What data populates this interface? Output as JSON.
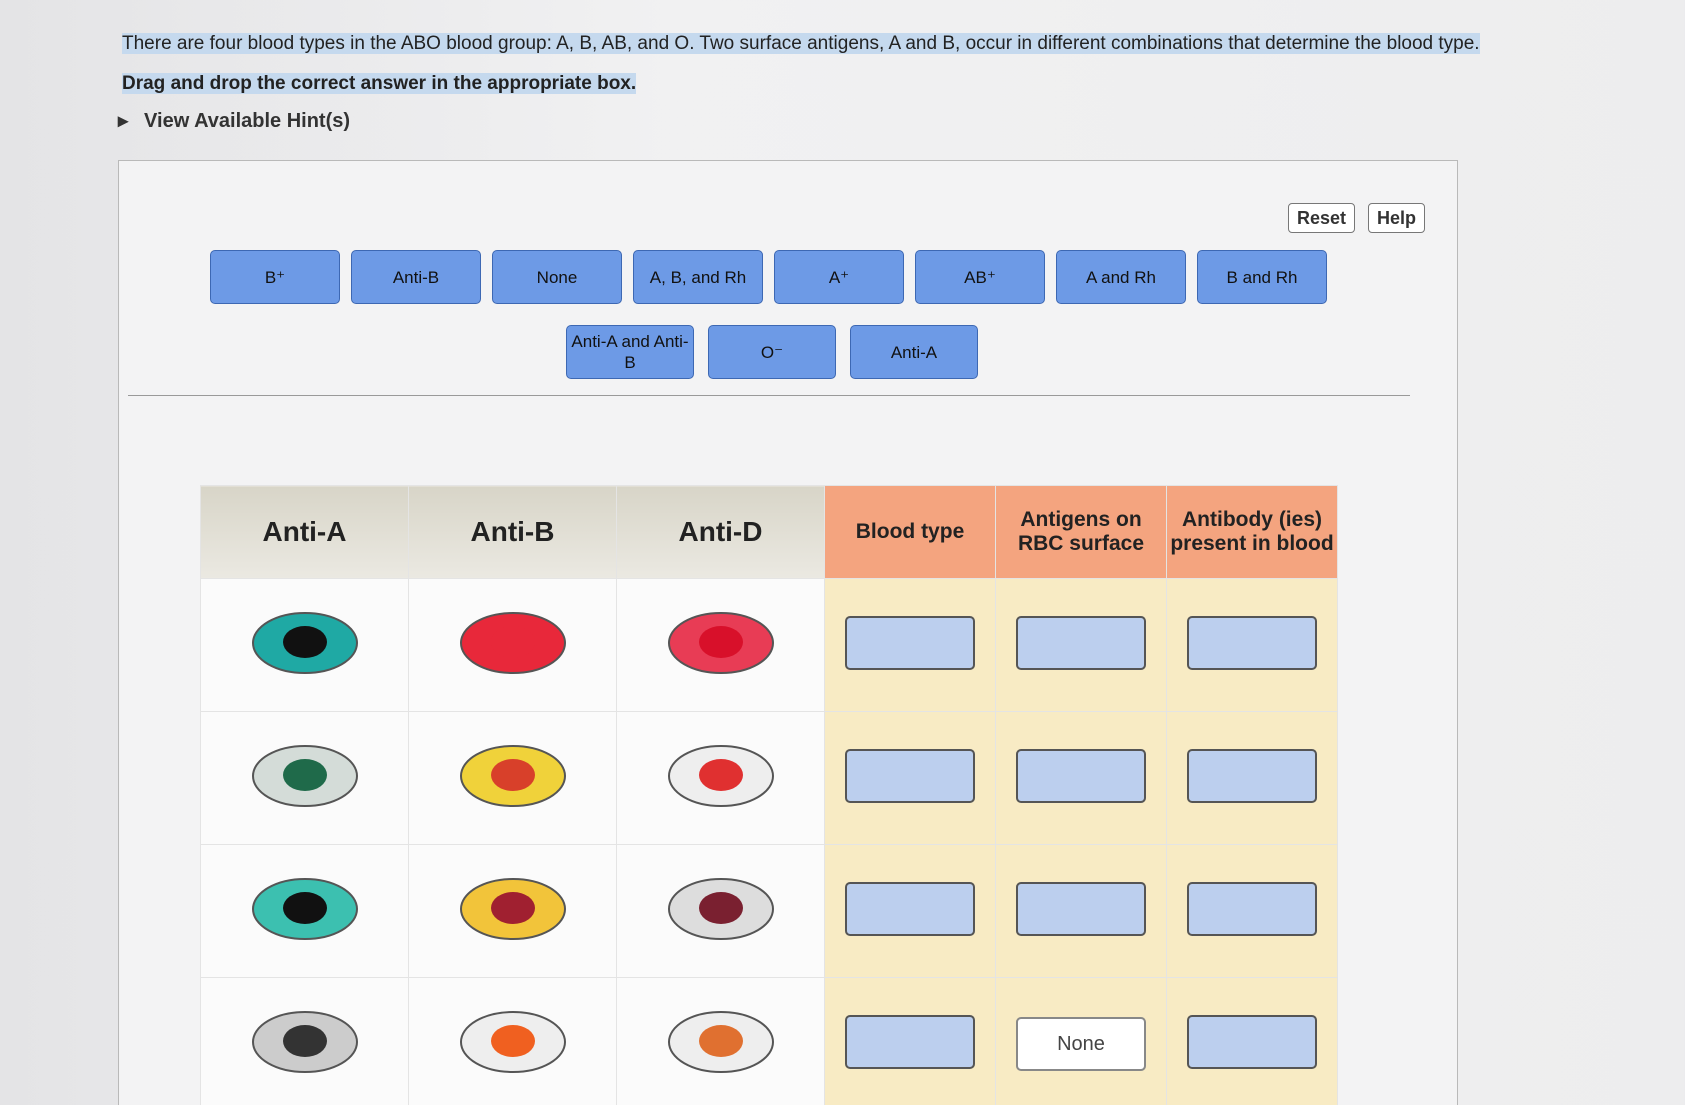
{
  "instructions": [
    "There are four blood types in the ABO blood group: A, B, AB, and O. Two surface antigens, A and B, occur in different combinations that determine the blood type.",
    "Drag and drop the correct answer in the appropriate box."
  ],
  "hint_toggle": "View Available Hint(s)",
  "toolbar": {
    "reset": "Reset",
    "help": "Help"
  },
  "answer_choices": [
    "B⁺",
    "Anti-B",
    "None",
    "A, B, and Rh",
    "A⁺",
    "AB⁺",
    "A and Rh",
    "B and Rh",
    "Anti-A and Anti-B",
    "O⁻",
    "Anti-A"
  ],
  "table": {
    "headers": [
      "Anti-A",
      "Anti-B",
      "Anti-D",
      "Blood type",
      "Antigens on RBC surface",
      "Antibody (ies) present in blood"
    ],
    "rows": [
      [
        null,
        null,
        null
      ],
      [
        null,
        null,
        null
      ],
      [
        null,
        null,
        null
      ],
      [
        null,
        "None",
        null
      ]
    ]
  }
}
